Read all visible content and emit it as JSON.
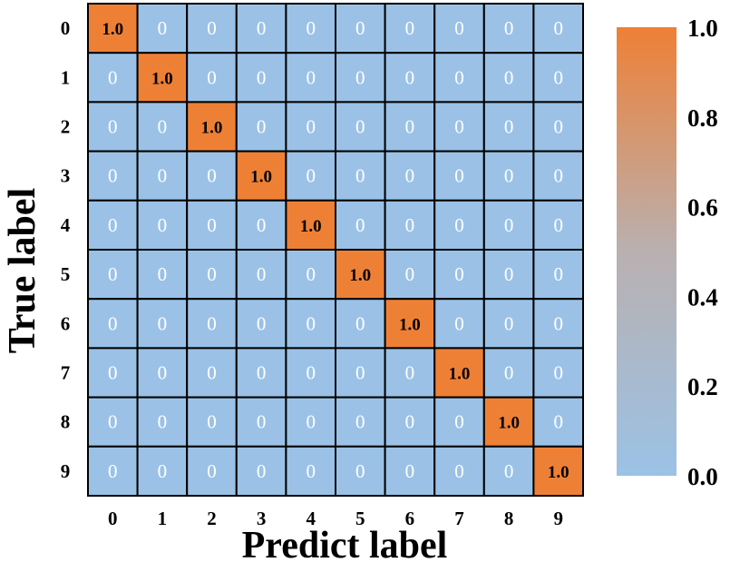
{
  "chart_data": {
    "type": "heatmap",
    "title": "",
    "xlabel": "Predict label",
    "ylabel": "True label",
    "x_categories": [
      "0",
      "1",
      "2",
      "3",
      "4",
      "5",
      "6",
      "7",
      "8",
      "9"
    ],
    "y_categories": [
      "0",
      "1",
      "2",
      "3",
      "4",
      "5",
      "6",
      "7",
      "8",
      "9"
    ],
    "values": [
      [
        1.0,
        0,
        0,
        0,
        0,
        0,
        0,
        0,
        0,
        0
      ],
      [
        0,
        1.0,
        0,
        0,
        0,
        0,
        0,
        0,
        0,
        0
      ],
      [
        0,
        0,
        1.0,
        0,
        0,
        0,
        0,
        0,
        0,
        0
      ],
      [
        0,
        0,
        0,
        1.0,
        0,
        0,
        0,
        0,
        0,
        0
      ],
      [
        0,
        0,
        0,
        0,
        1.0,
        0,
        0,
        0,
        0,
        0
      ],
      [
        0,
        0,
        0,
        0,
        0,
        1.0,
        0,
        0,
        0,
        0
      ],
      [
        0,
        0,
        0,
        0,
        0,
        0,
        1.0,
        0,
        0,
        0
      ],
      [
        0,
        0,
        0,
        0,
        0,
        0,
        0,
        1.0,
        0,
        0
      ],
      [
        0,
        0,
        0,
        0,
        0,
        0,
        0,
        0,
        1.0,
        0
      ],
      [
        0,
        0,
        0,
        0,
        0,
        0,
        0,
        0,
        0,
        1.0
      ]
    ],
    "cell_labels": [
      [
        "1.0",
        "0",
        "0",
        "0",
        "0",
        "0",
        "0",
        "0",
        "0",
        "0"
      ],
      [
        "0",
        "1.0",
        "0",
        "0",
        "0",
        "0",
        "0",
        "0",
        "0",
        "0"
      ],
      [
        "0",
        "0",
        "1.0",
        "0",
        "0",
        "0",
        "0",
        "0",
        "0",
        "0"
      ],
      [
        "0",
        "0",
        "0",
        "1.0",
        "0",
        "0",
        "0",
        "0",
        "0",
        "0"
      ],
      [
        "0",
        "0",
        "0",
        "0",
        "1.0",
        "0",
        "0",
        "0",
        "0",
        "0"
      ],
      [
        "0",
        "0",
        "0",
        "0",
        "0",
        "1.0",
        "0",
        "0",
        "0",
        "0"
      ],
      [
        "0",
        "0",
        "0",
        "0",
        "0",
        "0",
        "1.0",
        "0",
        "0",
        "0"
      ],
      [
        "0",
        "0",
        "0",
        "0",
        "0",
        "0",
        "0",
        "1.0",
        "0",
        "0"
      ],
      [
        "0",
        "0",
        "0",
        "0",
        "0",
        "0",
        "0",
        "0",
        "1.0",
        "0"
      ],
      [
        "0",
        "0",
        "0",
        "0",
        "0",
        "0",
        "0",
        "0",
        "0",
        "1.0"
      ]
    ],
    "colorbar": {
      "range": [
        0.0,
        1.0
      ],
      "ticks": [
        0.0,
        0.2,
        0.4,
        0.6,
        0.8,
        1.0
      ],
      "tick_labels": [
        "0.0",
        "0.2",
        "0.4",
        "0.6",
        "0.8",
        "1.0"
      ],
      "colors": {
        "low": "#9bc2e6",
        "mid": "#b9b0b0",
        "high": "#ee8036"
      },
      "placement": "right"
    },
    "grid": true,
    "cell_border_color": "#000000"
  }
}
